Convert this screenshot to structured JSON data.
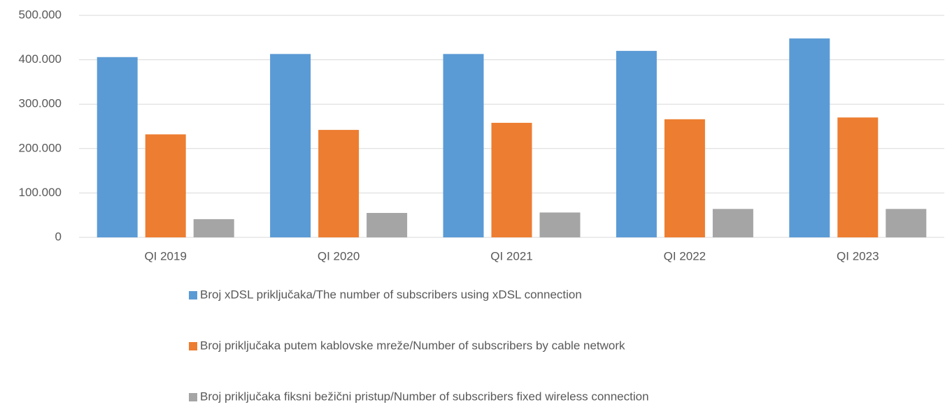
{
  "chart_data": {
    "type": "bar",
    "categories": [
      "QI 2019",
      "QI 2020",
      "QI 2021",
      "QI 2022",
      "QI 2023"
    ],
    "series": [
      {
        "name": "Broj  xDSL priključaka/The number of subscribers using  xDSL connection",
        "color": "#5b9bd5",
        "values": [
          406000,
          413000,
          413000,
          420000,
          448000
        ]
      },
      {
        "name": "Broj priključaka putem  kablovske mreže/Number of subscribers by cable network",
        "color": "#ed7d31",
        "values": [
          232000,
          242000,
          258000,
          266000,
          270000
        ]
      },
      {
        "name": "Broj priključaka fiksni bežični pristup/Number of subscribers fixed wireless connection",
        "color": "#a5a5a5",
        "values": [
          41000,
          55000,
          56000,
          64000,
          64000
        ]
      }
    ],
    "ylim": [
      0,
      500000
    ],
    "yticks": [
      0,
      {
        "value": 100000,
        "label": "100.000"
      },
      {
        "value": 200000,
        "label": "200.000"
      },
      {
        "value": 300000,
        "label": "300.000"
      },
      {
        "value": 400000,
        "label": "400.000"
      },
      {
        "value": 500000,
        "label": "500.000"
      }
    ],
    "grid": true,
    "legend": "bottom"
  }
}
